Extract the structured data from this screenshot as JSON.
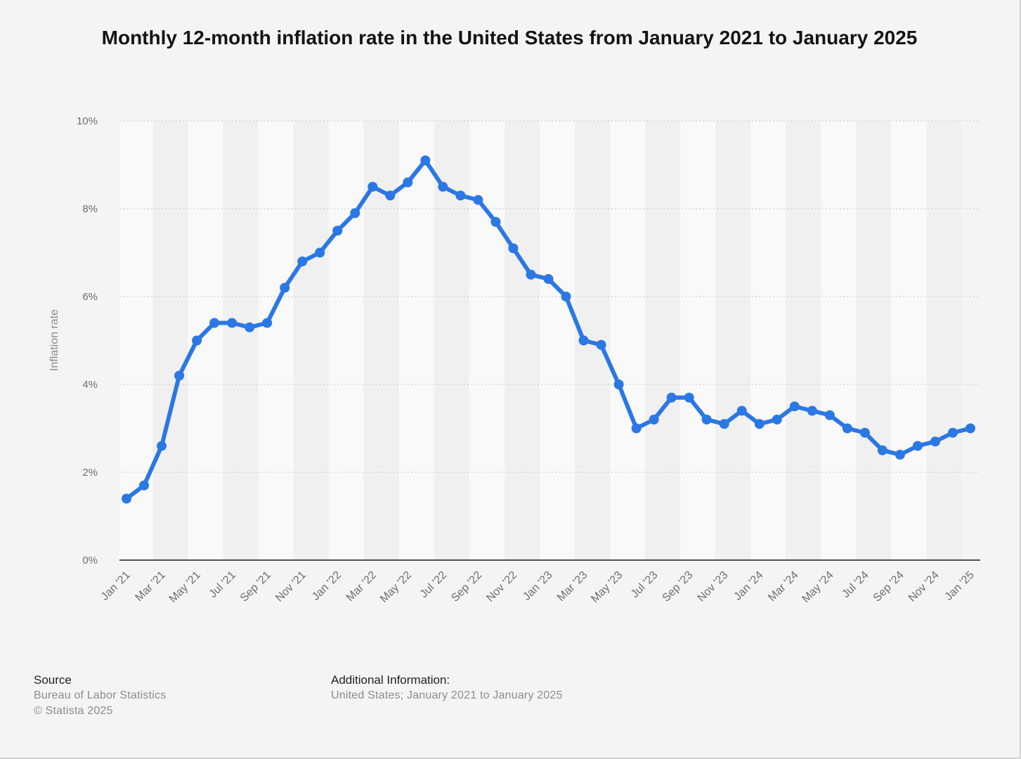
{
  "chart_data": {
    "type": "line",
    "title": "Monthly 12-month inflation rate in the United States from January 2021 to January 2025",
    "ylabel": "Inflation rate",
    "xlabel": "",
    "ylim": [
      0,
      10
    ],
    "yticks": [
      "0%",
      "2%",
      "4%",
      "6%",
      "8%",
      "10%"
    ],
    "grid": true,
    "categories": [
      "Jan '21",
      "Feb '21",
      "Mar '21",
      "Apr '21",
      "May '21",
      "Jun '21",
      "Jul '21",
      "Aug '21",
      "Sep '21",
      "Oct '21",
      "Nov '21",
      "Dec '21",
      "Jan '22",
      "Feb '22",
      "Mar '22",
      "Apr '22",
      "May '22",
      "Jun '22",
      "Jul '22",
      "Aug '22",
      "Sep '22",
      "Oct '22",
      "Nov '22",
      "Dec '22",
      "Jan '23",
      "Feb '23",
      "Mar '23",
      "Apr '23",
      "May '23",
      "Jun '23",
      "Jul '23",
      "Aug '23",
      "Sep '23",
      "Oct '23",
      "Nov '23",
      "Dec '23",
      "Jan '24",
      "Feb '24",
      "Mar '24",
      "Apr '24",
      "May '24",
      "Jun '24",
      "Jul '24",
      "Aug '24",
      "Sep '24",
      "Oct '24",
      "Nov '24",
      "Dec '24",
      "Jan '25"
    ],
    "x_tick_labels": [
      "Jan '21",
      "Mar '21",
      "May '21",
      "Jul '21",
      "Sep '21",
      "Nov '21",
      "Jan '22",
      "Mar '22",
      "May '22",
      "Jul '22",
      "Sep '22",
      "Nov '22",
      "Jan '23",
      "Mar '23",
      "May '23",
      "Jul '23",
      "Sep '23",
      "Nov '23",
      "Jan '24",
      "Mar '24",
      "May '24",
      "Jul '24",
      "Sep '24",
      "Nov '24",
      "Jan '25"
    ],
    "series": [
      {
        "name": "Inflation rate",
        "color": "#2b78e4",
        "values": [
          1.4,
          1.7,
          2.6,
          4.2,
          5.0,
          5.4,
          5.4,
          5.3,
          5.4,
          6.2,
          6.8,
          7.0,
          7.5,
          7.9,
          8.5,
          8.3,
          8.6,
          9.1,
          8.5,
          8.3,
          8.2,
          7.7,
          7.1,
          6.5,
          6.4,
          6.0,
          5.0,
          4.9,
          4.0,
          3.0,
          3.2,
          3.7,
          3.7,
          3.2,
          3.1,
          3.4,
          3.1,
          3.2,
          3.5,
          3.4,
          3.3,
          3.0,
          2.9,
          2.5,
          2.4,
          2.6,
          2.7,
          2.9,
          3.0
        ]
      }
    ]
  },
  "footer": {
    "source_heading": "Source",
    "source_name": "Bureau of Labor Statistics",
    "copyright": "© Statista 2025",
    "info_heading": "Additional Information:",
    "info_text": "United States; January 2021 to January 2025"
  }
}
